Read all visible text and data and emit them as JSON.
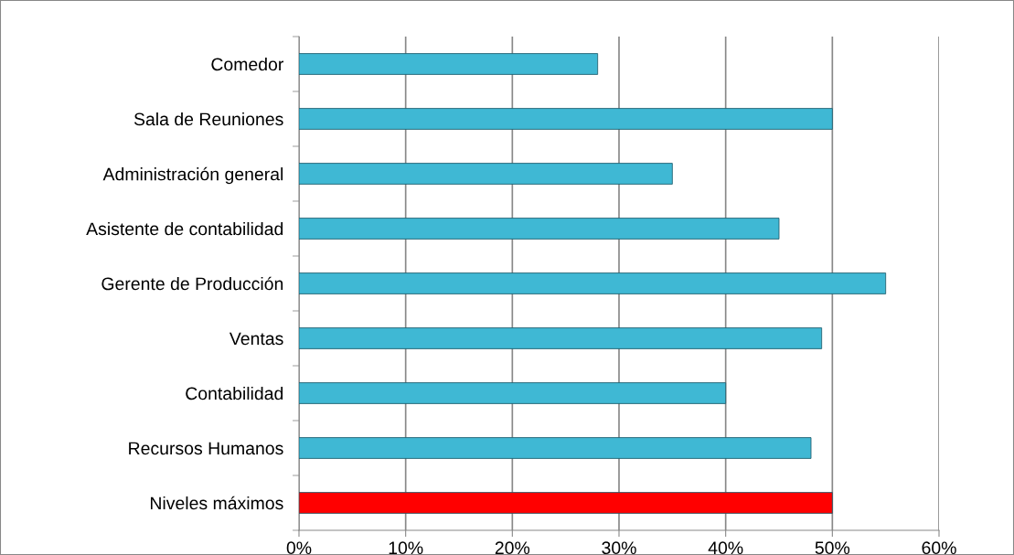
{
  "chart_data": {
    "type": "bar",
    "orientation": "horizontal",
    "categories": [
      "Comedor",
      "Sala de Reuniones",
      "Administración general",
      "Asistente de contabilidad",
      "Gerente de Producción",
      "Ventas",
      "Contabilidad",
      "Recursos Humanos",
      "Niveles máximos"
    ],
    "values": [
      28,
      50,
      35,
      45,
      55,
      49,
      40,
      48,
      50
    ],
    "colors": [
      "#3fb8d4",
      "#3fb8d4",
      "#3fb8d4",
      "#3fb8d4",
      "#3fb8d4",
      "#3fb8d4",
      "#3fb8d4",
      "#3fb8d4",
      "#ff0000"
    ],
    "xlim": [
      0,
      60
    ],
    "xticks": [
      {
        "value": 0,
        "label": "0%"
      },
      {
        "value": 10,
        "label": "10%"
      },
      {
        "value": 20,
        "label": "20%"
      },
      {
        "value": 30,
        "label": "30%"
      },
      {
        "value": 40,
        "label": "40%"
      },
      {
        "value": 50,
        "label": "50%"
      },
      {
        "value": 60,
        "label": "60%"
      }
    ],
    "grid": "x",
    "legend": false
  }
}
